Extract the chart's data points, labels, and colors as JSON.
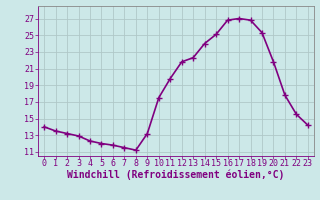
{
  "x": [
    0,
    1,
    2,
    3,
    4,
    5,
    6,
    7,
    8,
    9,
    10,
    11,
    12,
    13,
    14,
    15,
    16,
    17,
    18,
    19,
    20,
    21,
    22,
    23
  ],
  "y": [
    14.0,
    13.5,
    13.2,
    12.9,
    12.3,
    12.0,
    11.8,
    11.5,
    11.2,
    13.2,
    17.5,
    19.8,
    21.8,
    22.3,
    24.0,
    25.1,
    26.8,
    27.0,
    26.8,
    25.3,
    21.8,
    17.8,
    15.5,
    14.2
  ],
  "line_color": "#800080",
  "marker": "+",
  "marker_size": 4,
  "bg_color": "#cce8e8",
  "grid_color": "#b0c8c8",
  "xlabel": "Windchill (Refroidissement éolien,°C)",
  "ylim": [
    10.5,
    28.5
  ],
  "xlim": [
    -0.5,
    23.5
  ],
  "yticks": [
    11,
    13,
    15,
    17,
    19,
    21,
    23,
    25,
    27
  ],
  "xticks": [
    0,
    1,
    2,
    3,
    4,
    5,
    6,
    7,
    8,
    9,
    10,
    11,
    12,
    13,
    14,
    15,
    16,
    17,
    18,
    19,
    20,
    21,
    22,
    23
  ],
  "font_color": "#800080",
  "tick_fontsize": 6.0,
  "label_fontsize": 7.0,
  "linewidth": 1.2,
  "marker_linewidth": 1.0
}
